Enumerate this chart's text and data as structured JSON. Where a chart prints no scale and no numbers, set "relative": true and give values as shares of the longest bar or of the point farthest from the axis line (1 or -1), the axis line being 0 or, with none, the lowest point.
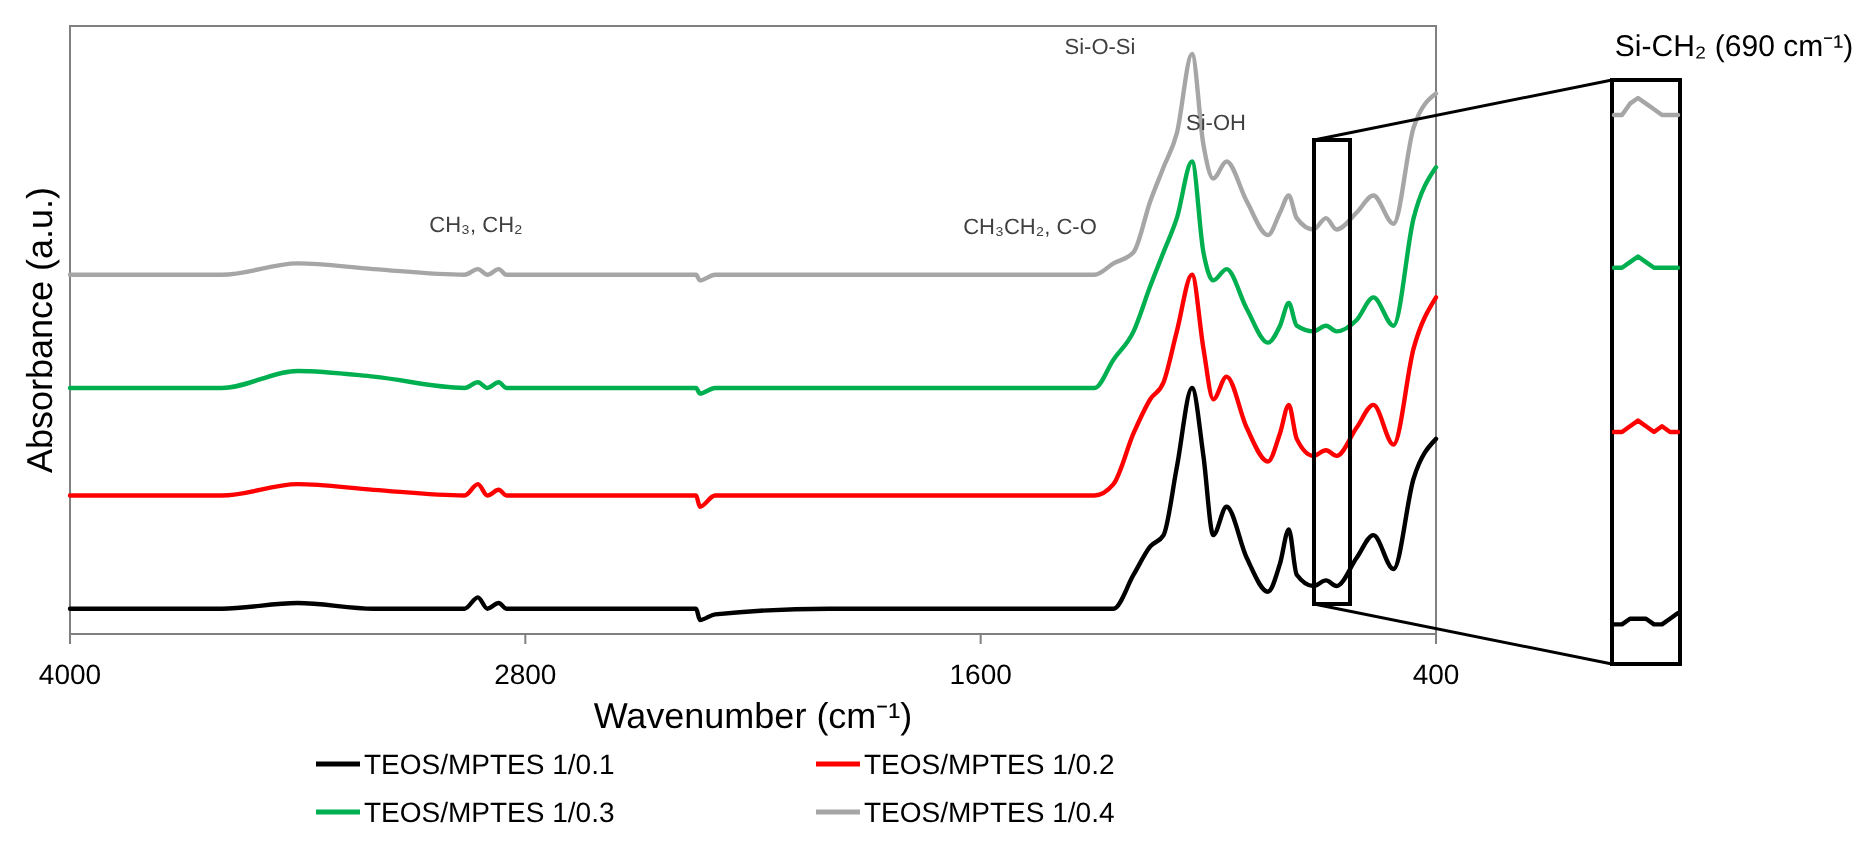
{
  "chart_data": [
    {
      "type": "line",
      "xlabel": "Wavenumber (cm⁻¹)",
      "ylabel": "Absorbance (a.u.)",
      "relative": true,
      "xlim": [
        4000,
        400
      ],
      "xticks": [
        4000,
        2800,
        1600,
        400
      ],
      "tick_labels": "x",
      "legend": "bottom",
      "grid": false,
      "marker": "none",
      "line_style": "solid",
      "x": [
        4000,
        3600,
        3400,
        3200,
        2960,
        2925,
        2900,
        2870,
        2850,
        2800,
        2350,
        2340,
        2300,
        2000,
        1300,
        1250,
        1197,
        1153,
        1118,
        1083,
        1043,
        1013,
        987,
        952,
        899,
        843,
        811,
        788,
        767,
        723,
        690,
        662,
        609,
        565,
        512,
        459,
        400
      ],
      "annotations": [
        "CH₃, CH₂",
        "CH₃CH₂, C-O",
        "Si-O-Si",
        "Si-OH"
      ],
      "series": [
        {
          "name": "TEOS/MPTES 1/0.1",
          "color": "#000000",
          "values": [
            0.02,
            0.02,
            0.03,
            0.02,
            0.02,
            0.04,
            0.02,
            0.03,
            0.02,
            0.02,
            0.02,
            0,
            0.01,
            0.02,
            0.02,
            0.02,
            0.08,
            0.13,
            0.15,
            0.27,
            0.41,
            0.29,
            0.15,
            0.2,
            0.11,
            0.05,
            0.1,
            0.16,
            0.08,
            0.06,
            0.07,
            0.06,
            0.11,
            0.15,
            0.09,
            0.25,
            0.32
          ]
        },
        {
          "name": "TEOS/MPTES 1/0.2",
          "color": "#ff0000",
          "values": [
            0.22,
            0.22,
            0.24,
            0.23,
            0.22,
            0.24,
            0.22,
            0.23,
            0.22,
            0.22,
            0.22,
            0.2,
            0.22,
            0.22,
            0.22,
            0.24,
            0.33,
            0.39,
            0.42,
            0.51,
            0.61,
            0.48,
            0.39,
            0.43,
            0.34,
            0.28,
            0.33,
            0.38,
            0.32,
            0.29,
            0.3,
            0.29,
            0.34,
            0.38,
            0.31,
            0.48,
            0.57
          ]
        },
        {
          "name": "TEOS/MPTES 1/0.3",
          "color": "#00b050",
          "values": [
            0.41,
            0.41,
            0.44,
            0.43,
            0.41,
            0.42,
            0.41,
            0.42,
            0.41,
            0.41,
            0.41,
            0.4,
            0.41,
            0.41,
            0.41,
            0.46,
            0.51,
            0.59,
            0.65,
            0.71,
            0.81,
            0.65,
            0.6,
            0.62,
            0.55,
            0.49,
            0.52,
            0.56,
            0.52,
            0.51,
            0.52,
            0.51,
            0.53,
            0.57,
            0.52,
            0.71,
            0.8
          ]
        },
        {
          "name": "TEOS/MPTES 1/0.4",
          "color": "#a6a6a6",
          "values": [
            0.61,
            0.61,
            0.63,
            0.62,
            0.61,
            0.62,
            0.61,
            0.62,
            0.61,
            0.61,
            0.61,
            0.6,
            0.61,
            0.61,
            0.61,
            0.63,
            0.65,
            0.74,
            0.8,
            0.86,
            1,
            0.84,
            0.78,
            0.81,
            0.74,
            0.68,
            0.72,
            0.75,
            0.71,
            0.69,
            0.71,
            0.69,
            0.72,
            0.75,
            0.7,
            0.87,
            0.93
          ]
        }
      ]
    },
    {
      "type": "line",
      "title": "Si-CH₂ (690 cm⁻¹)",
      "relative": true,
      "tick_labels": false,
      "marker": "none",
      "categories": [
        null,
        null,
        null,
        null,
        null,
        null,
        null,
        null,
        null
      ],
      "series": [
        {
          "color": "#000000",
          "values": [
            0.07,
            0.07,
            0.08,
            0.08,
            0.08,
            0.07,
            0.07,
            0.08,
            0.09
          ]
        },
        {
          "color": "#ff0000",
          "values": [
            0.41,
            0.41,
            0.42,
            0.43,
            0.42,
            0.41,
            0.42,
            0.41,
            0.41
          ]
        },
        {
          "color": "#00b050",
          "values": [
            0.7,
            0.7,
            0.71,
            0.72,
            0.71,
            0.7,
            0.7,
            0.7,
            0.7
          ]
        },
        {
          "color": "#a6a6a6",
          "values": [
            0.97,
            0.97,
            0.99,
            1,
            0.99,
            0.98,
            0.97,
            0.97,
            0.97
          ]
        }
      ]
    }
  ]
}
